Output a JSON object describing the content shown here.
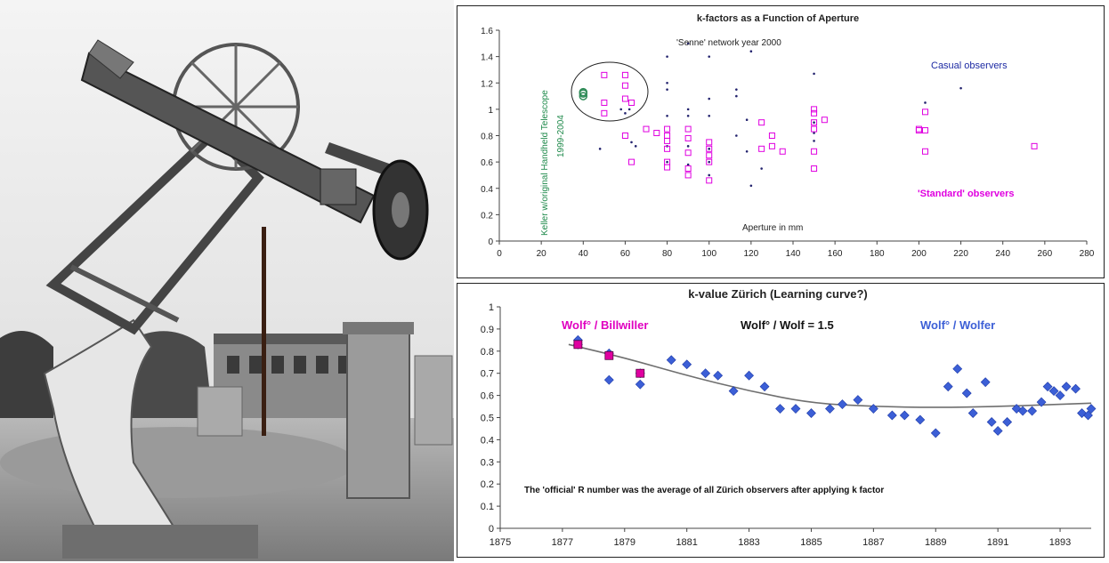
{
  "photo": {
    "subject": "Historic refractor telescope (Wolf's handheld / Fraunhofer refractor) on an outdoor pillar mount"
  },
  "chart_data": [
    {
      "type": "scatter",
      "title": "k-factors as a Function of Aperture",
      "xlabel": "Aperture in mm",
      "xlim": [
        0,
        280
      ],
      "ylim": [
        0,
        1.6
      ],
      "xticks": [
        0,
        20,
        40,
        60,
        80,
        100,
        120,
        140,
        160,
        180,
        200,
        220,
        240,
        260,
        280
      ],
      "yticks": [
        0,
        0.2,
        0.4,
        0.6,
        0.8,
        1,
        1.2,
        1.4,
        1.6
      ],
      "annotations": {
        "senne": "'Senne' network year 2000",
        "casual": "Casual observers",
        "standard": "'Standard' observers",
        "keller": "Keller w/original Handheld Telescope",
        "keller_years": "1999-2004"
      },
      "series": [
        {
          "name": "Casual observers",
          "color": "#23236e",
          "marker": "dot",
          "points": [
            [
              48,
              0.7
            ],
            [
              58,
              1.0
            ],
            [
              60,
              0.97
            ],
            [
              62,
              1.0
            ],
            [
              63,
              0.75
            ],
            [
              65,
              0.72
            ],
            [
              80,
              1.4
            ],
            [
              80,
              1.2
            ],
            [
              80,
              1.15
            ],
            [
              80,
              0.95
            ],
            [
              80,
              0.72
            ],
            [
              80,
              0.6
            ],
            [
              90,
              1.5
            ],
            [
              90,
              1.0
            ],
            [
              90,
              0.95
            ],
            [
              90,
              0.72
            ],
            [
              90,
              0.58
            ],
            [
              100,
              1.4
            ],
            [
              100,
              1.08
            ],
            [
              100,
              0.95
            ],
            [
              100,
              0.7
            ],
            [
              100,
              0.6
            ],
            [
              100,
              0.5
            ],
            [
              113,
              1.15
            ],
            [
              113,
              1.1
            ],
            [
              113,
              0.8
            ],
            [
              118,
              0.92
            ],
            [
              118,
              0.68
            ],
            [
              120,
              1.44
            ],
            [
              120,
              0.42
            ],
            [
              125,
              0.55
            ],
            [
              150,
              1.27
            ],
            [
              150,
              0.9
            ],
            [
              150,
              0.82
            ],
            [
              150,
              0.76
            ],
            [
              203,
              1.05
            ],
            [
              220,
              1.16
            ]
          ]
        },
        {
          "name": "'Standard' observers",
          "color": "#e000e0",
          "marker": "square",
          "points": [
            [
              50,
              1.26
            ],
            [
              50,
              1.05
            ],
            [
              50,
              0.97
            ],
            [
              60,
              1.26
            ],
            [
              60,
              1.18
            ],
            [
              60,
              1.08
            ],
            [
              60,
              0.8
            ],
            [
              63,
              1.05
            ],
            [
              63,
              0.6
            ],
            [
              70,
              0.85
            ],
            [
              75,
              0.82
            ],
            [
              80,
              0.85
            ],
            [
              80,
              0.8
            ],
            [
              80,
              0.76
            ],
            [
              80,
              0.7
            ],
            [
              80,
              0.6
            ],
            [
              80,
              0.56
            ],
            [
              90,
              0.85
            ],
            [
              90,
              0.78
            ],
            [
              90,
              0.67
            ],
            [
              90,
              0.55
            ],
            [
              90,
              0.5
            ],
            [
              100,
              0.75
            ],
            [
              100,
              0.7
            ],
            [
              100,
              0.65
            ],
            [
              100,
              0.6
            ],
            [
              100,
              0.46
            ],
            [
              125,
              0.9
            ],
            [
              125,
              0.7
            ],
            [
              130,
              0.8
            ],
            [
              130,
              0.72
            ],
            [
              135,
              0.68
            ],
            [
              150,
              1.0
            ],
            [
              150,
              0.97
            ],
            [
              150,
              0.9
            ],
            [
              150,
              0.85
            ],
            [
              150,
              0.68
            ],
            [
              150,
              0.55
            ],
            [
              155,
              0.92
            ],
            [
              200,
              0.85
            ],
            [
              200,
              0.84
            ],
            [
              203,
              0.98
            ],
            [
              203,
              0.84
            ],
            [
              203,
              0.68
            ],
            [
              255,
              0.72
            ]
          ]
        },
        {
          "name": "Keller w/original Handheld Telescope",
          "color": "#2e8b57",
          "marker": "circle",
          "points": [
            [
              40,
              1.12
            ],
            [
              40,
              1.1
            ],
            [
              40,
              1.13
            ]
          ]
        }
      ]
    },
    {
      "type": "scatter",
      "title": "k-value Zürich (Learning curve?)",
      "xlim": [
        1875,
        1894
      ],
      "ylim": [
        0,
        1
      ],
      "xticks": [
        1875,
        1877,
        1879,
        1881,
        1883,
        1885,
        1887,
        1889,
        1891,
        1893
      ],
      "yticks": [
        0,
        0.1,
        0.2,
        0.3,
        0.4,
        0.5,
        0.6,
        0.7,
        0.8,
        0.9,
        1
      ],
      "annotations": {
        "billwiller": "Wolf° / Billwiller",
        "ratio": "Wolf° / Wolf = 1.5",
        "wolfer": "Wolf° / Wolfer",
        "footer": "The 'official' R number was the average of all Zürich observers after applying k factor"
      },
      "series": [
        {
          "name": "Wolf° / Wolfer",
          "color": "#3c5fd6",
          "marker": "diamond",
          "points": [
            [
              1877.5,
              0.85
            ],
            [
              1877.5,
              0.83
            ],
            [
              1878.5,
              0.79
            ],
            [
              1878.5,
              0.67
            ],
            [
              1879.5,
              0.7
            ],
            [
              1879.5,
              0.65
            ],
            [
              1880.5,
              0.76
            ],
            [
              1881.0,
              0.74
            ],
            [
              1881.6,
              0.7
            ],
            [
              1882.0,
              0.69
            ],
            [
              1882.5,
              0.62
            ],
            [
              1883.0,
              0.69
            ],
            [
              1883.5,
              0.64
            ],
            [
              1884.0,
              0.54
            ],
            [
              1884.5,
              0.54
            ],
            [
              1885.0,
              0.52
            ],
            [
              1885.6,
              0.54
            ],
            [
              1886.0,
              0.56
            ],
            [
              1886.5,
              0.58
            ],
            [
              1887.0,
              0.54
            ],
            [
              1887.6,
              0.51
            ],
            [
              1888.0,
              0.51
            ],
            [
              1888.5,
              0.49
            ],
            [
              1889.0,
              0.43
            ],
            [
              1889.4,
              0.64
            ],
            [
              1889.7,
              0.72
            ],
            [
              1890.0,
              0.61
            ],
            [
              1890.2,
              0.52
            ],
            [
              1890.6,
              0.66
            ],
            [
              1890.8,
              0.48
            ],
            [
              1891.0,
              0.44
            ],
            [
              1891.3,
              0.48
            ],
            [
              1891.6,
              0.54
            ],
            [
              1891.8,
              0.53
            ],
            [
              1892.1,
              0.53
            ],
            [
              1892.4,
              0.57
            ],
            [
              1892.6,
              0.64
            ],
            [
              1892.8,
              0.62
            ],
            [
              1893.0,
              0.6
            ],
            [
              1893.2,
              0.64
            ],
            [
              1893.5,
              0.63
            ],
            [
              1893.7,
              0.52
            ],
            [
              1893.9,
              0.51
            ],
            [
              1894.0,
              0.54
            ]
          ]
        },
        {
          "name": "Wolf° / Billwiller",
          "color": "#e000a0",
          "marker": "square",
          "points": [
            [
              1877.5,
              0.83
            ],
            [
              1878.5,
              0.78
            ],
            [
              1879.5,
              0.7
            ]
          ]
        }
      ],
      "trend": {
        "color": "#6f6f6f",
        "points": [
          [
            1877.2,
            0.83
          ],
          [
            1879,
            0.77
          ],
          [
            1881,
            0.69
          ],
          [
            1883,
            0.62
          ],
          [
            1885,
            0.565
          ],
          [
            1887,
            0.55
          ],
          [
            1889,
            0.545
          ],
          [
            1891,
            0.55
          ],
          [
            1893,
            0.56
          ],
          [
            1894,
            0.565
          ]
        ]
      }
    }
  ]
}
